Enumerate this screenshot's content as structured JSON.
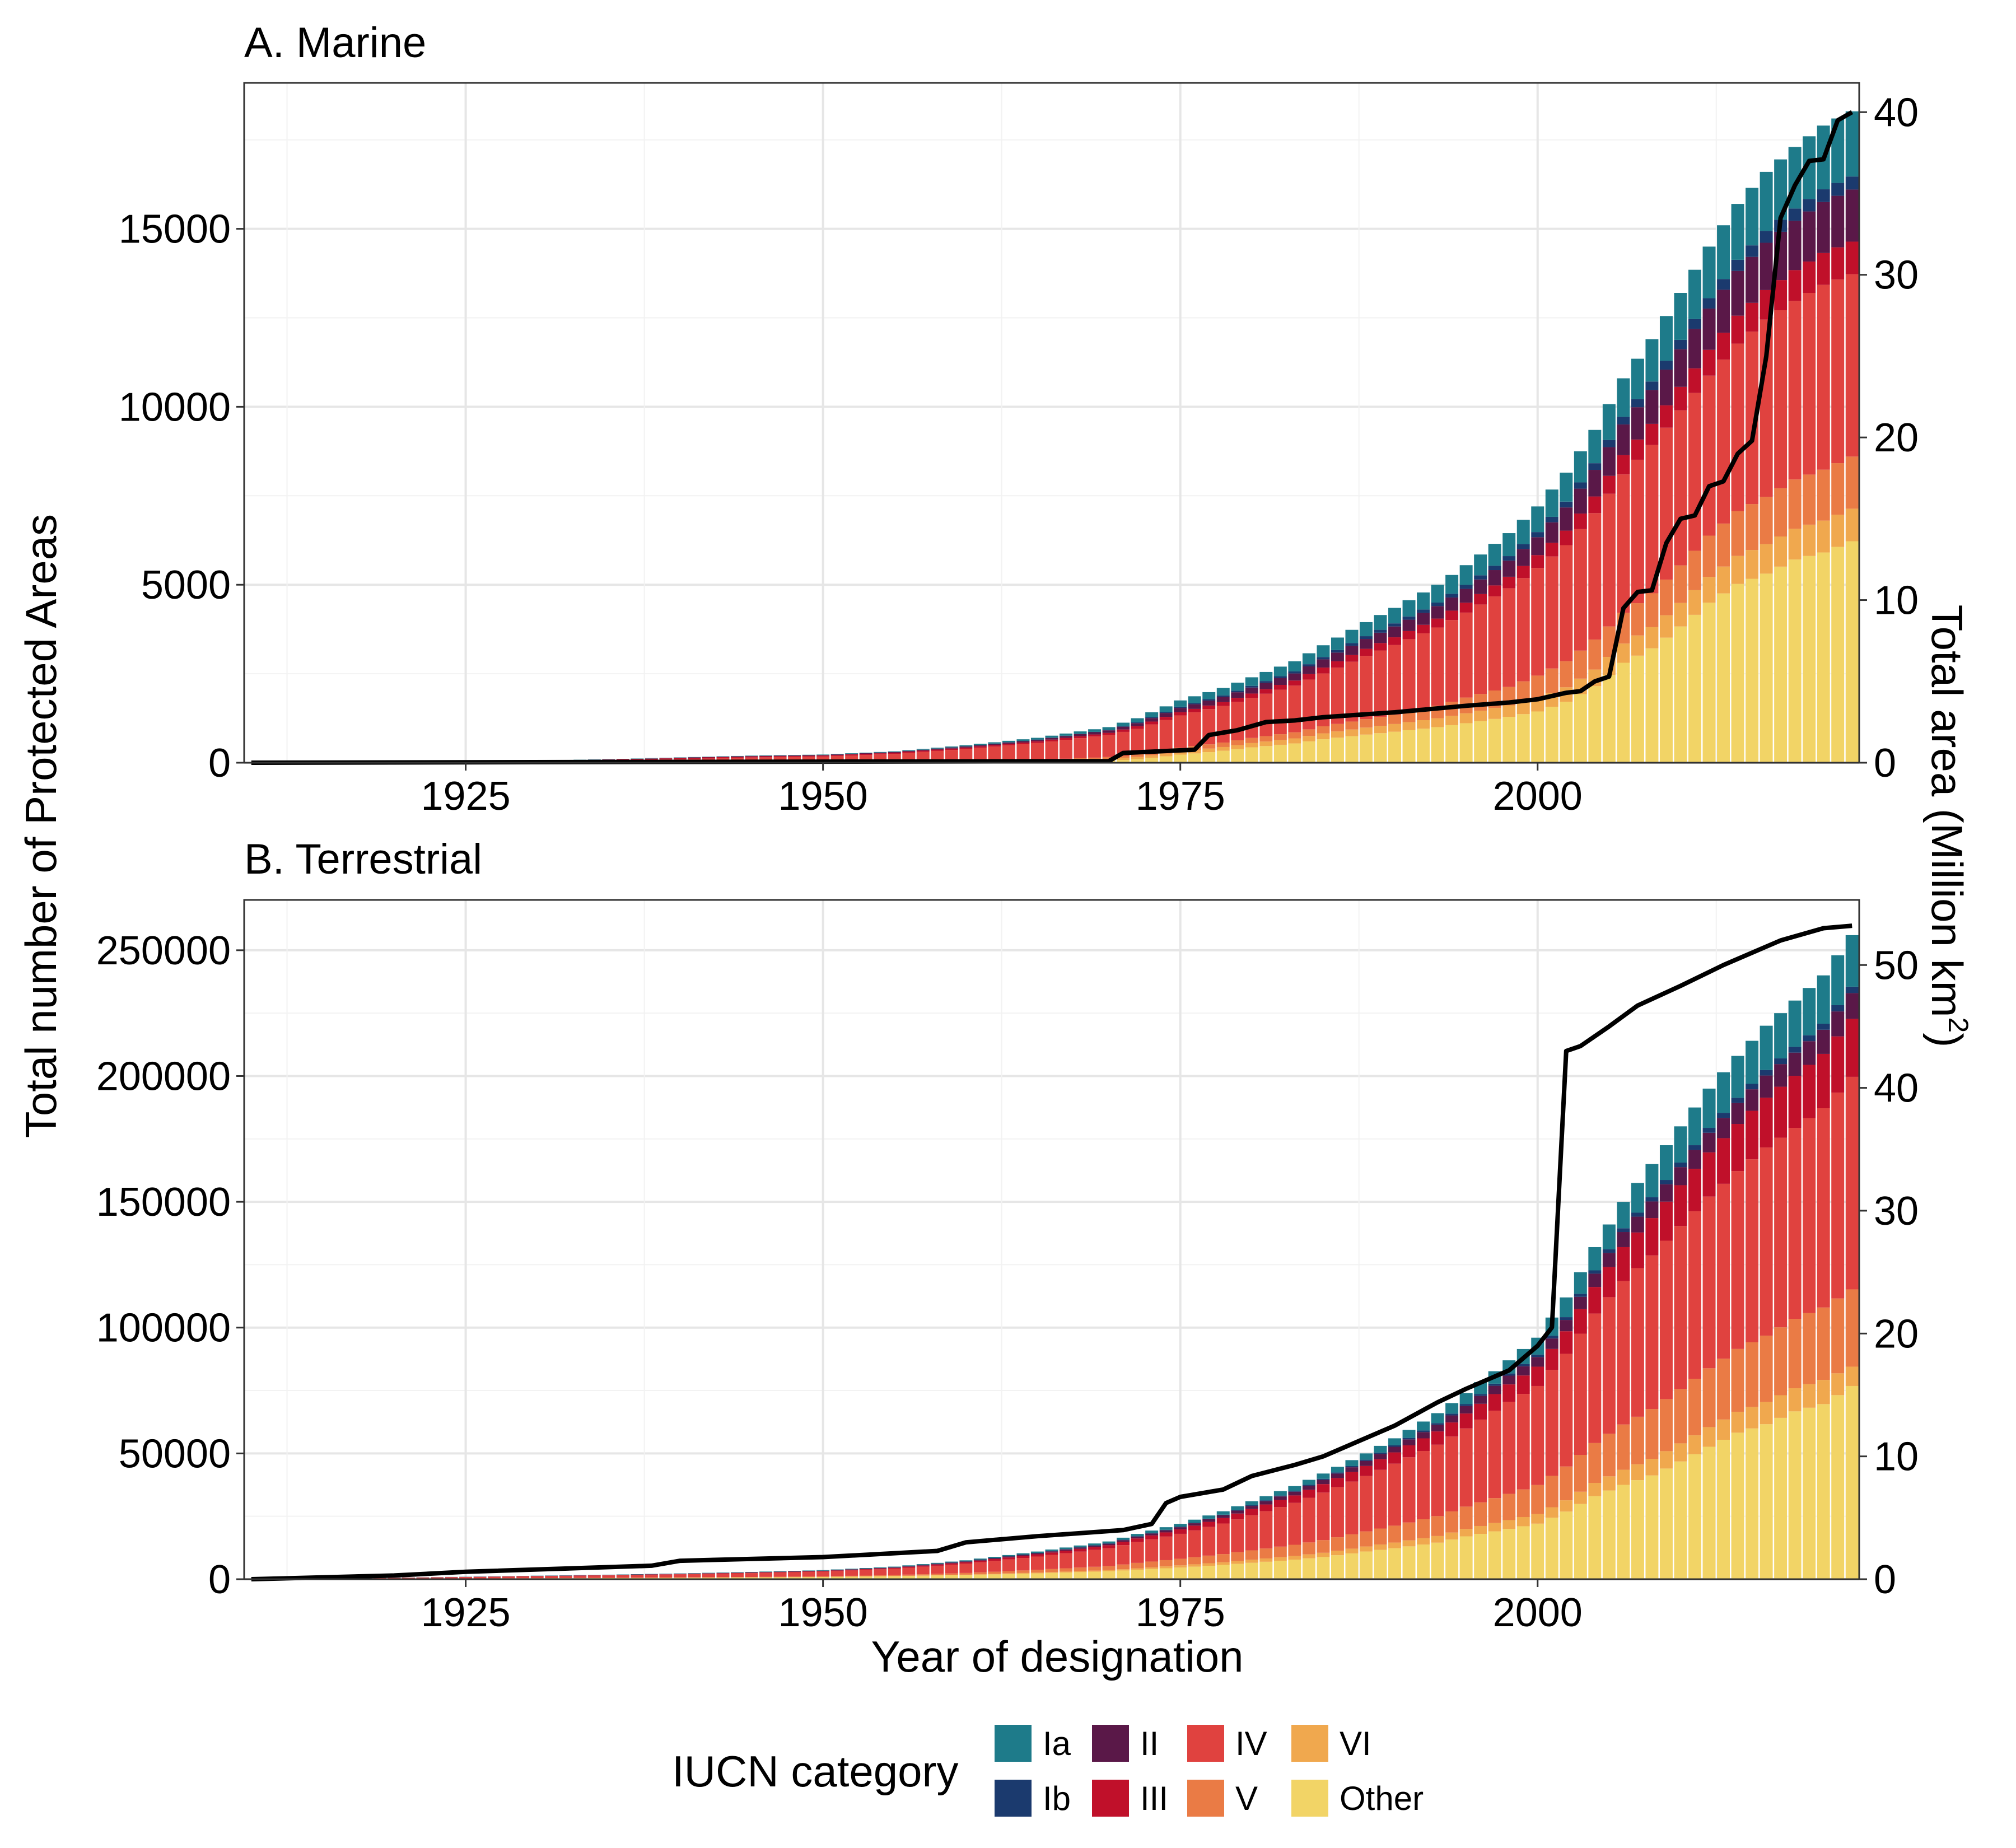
{
  "figure": {
    "y_axis_title": "Total number of Protected Areas",
    "y2_axis_title": "Total area (Million km",
    "y2_axis_title_superscript": "2",
    "y2_axis_title_close": ")",
    "x_axis_title": "Year of designation"
  },
  "legend": {
    "title": "IUCN category",
    "items": [
      {
        "key": "Ia",
        "label": "Ia",
        "color": "#1e7b8a"
      },
      {
        "key": "Ib",
        "label": "Ib",
        "color": "#1b3a6e"
      },
      {
        "key": "II",
        "label": "II",
        "color": "#5a1848"
      },
      {
        "key": "III",
        "label": "III",
        "color": "#c0102a"
      },
      {
        "key": "IV",
        "label": "IV",
        "color": "#e0423f"
      },
      {
        "key": "V",
        "label": "V",
        "color": "#ea7b45"
      },
      {
        "key": "VI",
        "label": "VI",
        "color": "#f0a84e"
      },
      {
        "key": "Other",
        "label": "Other",
        "color": "#f2d466"
      }
    ]
  },
  "line_color": "#000000",
  "chart_data": [
    {
      "type": "bar",
      "title": "A. Marine",
      "xlabel": "Year of designation",
      "ylabel": "Total number of Protected Areas",
      "y2label": "Total area (Million km2)",
      "xlim": [
        1910,
        2022
      ],
      "ylim": [
        0,
        19100
      ],
      "y2lim": [
        0,
        41.8
      ],
      "x_ticks": [
        1925,
        1950,
        1975,
        2000
      ],
      "y_ticks": [
        0,
        5000,
        10000,
        15000
      ],
      "y2_ticks": [
        0,
        10,
        20,
        30,
        40
      ],
      "grid": true,
      "stacked": true,
      "bar_series": {
        "x": [
          1910,
          1915,
          1920,
          1925,
          1930,
          1935,
          1940,
          1945,
          1950,
          1955,
          1960,
          1965,
          1970,
          1972,
          1975,
          1978,
          1980,
          1983,
          1985,
          1988,
          1990,
          1993,
          1995,
          1998,
          2000,
          2002,
          2004,
          2006,
          2008,
          2010,
          2012,
          2014,
          2016,
          2018,
          2020,
          2022
        ],
        "totals": [
          0,
          0,
          10,
          30,
          60,
          100,
          150,
          200,
          230,
          320,
          490,
          700,
          1000,
          1250,
          1750,
          2100,
          2400,
          2850,
          3300,
          3950,
          4350,
          5000,
          5550,
          6450,
          7200,
          8150,
          9350,
          10800,
          11900,
          13200,
          14500,
          15700,
          16600,
          17300,
          17900,
          18300
        ],
        "fractions": {
          "Ia": [
            0.12,
            0.12,
            0.12,
            0.1,
            0.08,
            0.06,
            0.05,
            0.05,
            0.05,
            0.05,
            0.06,
            0.07,
            0.08,
            0.09,
            0.1,
            0.1,
            0.1,
            0.1,
            0.1,
            0.1,
            0.1,
            0.1,
            0.1,
            0.1,
            0.1,
            0.1,
            0.1,
            0.1,
            0.1,
            0.1,
            0.1,
            0.1,
            0.1,
            0.1,
            0.1,
            0.1
          ],
          "Ib": [
            0.01,
            0.01,
            0.01,
            0.01,
            0.01,
            0.01,
            0.01,
            0.01,
            0.01,
            0.01,
            0.01,
            0.01,
            0.01,
            0.02,
            0.02,
            0.02,
            0.02,
            0.02,
            0.02,
            0.02,
            0.02,
            0.02,
            0.02,
            0.02,
            0.02,
            0.02,
            0.02,
            0.02,
            0.02,
            0.02,
            0.02,
            0.02,
            0.02,
            0.02,
            0.02,
            0.02
          ],
          "II": [
            0.1,
            0.1,
            0.1,
            0.1,
            0.08,
            0.07,
            0.06,
            0.06,
            0.06,
            0.06,
            0.06,
            0.06,
            0.07,
            0.07,
            0.07,
            0.07,
            0.07,
            0.07,
            0.07,
            0.07,
            0.07,
            0.07,
            0.07,
            0.07,
            0.07,
            0.08,
            0.08,
            0.08,
            0.08,
            0.08,
            0.08,
            0.08,
            0.08,
            0.08,
            0.08,
            0.08
          ],
          "III": [
            0.3,
            0.3,
            0.3,
            0.3,
            0.3,
            0.25,
            0.2,
            0.15,
            0.12,
            0.1,
            0.08,
            0.07,
            0.06,
            0.06,
            0.05,
            0.05,
            0.05,
            0.05,
            0.05,
            0.05,
            0.05,
            0.05,
            0.05,
            0.05,
            0.05,
            0.05,
            0.05,
            0.05,
            0.05,
            0.05,
            0.05,
            0.05,
            0.05,
            0.05,
            0.05,
            0.05
          ],
          "IV": [
            0.47,
            0.47,
            0.47,
            0.49,
            0.53,
            0.61,
            0.68,
            0.73,
            0.74,
            0.72,
            0.7,
            0.67,
            0.62,
            0.57,
            0.52,
            0.49,
            0.47,
            0.46,
            0.45,
            0.45,
            0.45,
            0.44,
            0.43,
            0.43,
            0.42,
            0.4,
            0.38,
            0.36,
            0.35,
            0.33,
            0.31,
            0.3,
            0.3,
            0.29,
            0.29,
            0.28
          ],
          "V": [
            0.0,
            0.0,
            0.0,
            0.0,
            0.0,
            0.0,
            0.0,
            0.0,
            0.0,
            0.02,
            0.03,
            0.04,
            0.05,
            0.06,
            0.06,
            0.06,
            0.06,
            0.06,
            0.06,
            0.06,
            0.06,
            0.07,
            0.08,
            0.08,
            0.09,
            0.09,
            0.09,
            0.08,
            0.08,
            0.08,
            0.08,
            0.08,
            0.08,
            0.08,
            0.08,
            0.08
          ],
          "VI": [
            0.0,
            0.0,
            0.0,
            0.0,
            0.0,
            0.0,
            0.0,
            0.0,
            0.01,
            0.02,
            0.03,
            0.04,
            0.05,
            0.05,
            0.05,
            0.05,
            0.05,
            0.05,
            0.05,
            0.05,
            0.05,
            0.05,
            0.05,
            0.05,
            0.05,
            0.05,
            0.05,
            0.05,
            0.05,
            0.05,
            0.05,
            0.05,
            0.05,
            0.05,
            0.05,
            0.05
          ],
          "Other": [
            0.0,
            0.0,
            0.0,
            0.0,
            0.0,
            0.0,
            0.0,
            0.0,
            0.01,
            0.02,
            0.03,
            0.04,
            0.06,
            0.08,
            0.13,
            0.16,
            0.18,
            0.19,
            0.2,
            0.2,
            0.2,
            0.2,
            0.2,
            0.2,
            0.2,
            0.21,
            0.23,
            0.26,
            0.27,
            0.29,
            0.31,
            0.32,
            0.32,
            0.33,
            0.33,
            0.34
          ]
        }
      },
      "line_series": {
        "axis": "right",
        "x": [
          1910,
          1970,
          1971,
          1976,
          1977,
          1979,
          1981,
          1983,
          1985,
          1990,
          1995,
          1998,
          2000,
          2002,
          2003,
          2004,
          2005,
          2006,
          2007,
          2008,
          2009,
          2010,
          2011,
          2012,
          2013,
          2014,
          2015,
          2016,
          2017,
          2018,
          2019,
          2020,
          2021,
          2022
        ],
        "y": [
          0,
          0.1,
          0.6,
          0.8,
          1.7,
          2.0,
          2.5,
          2.6,
          2.8,
          3.1,
          3.5,
          3.7,
          3.9,
          4.3,
          4.4,
          5.0,
          5.3,
          9.5,
          10.5,
          10.6,
          13.5,
          15.0,
          15.2,
          17.0,
          17.3,
          19.0,
          19.8,
          25.0,
          33.5,
          35.5,
          37.0,
          37.1,
          39.5,
          40.0
        ]
      }
    },
    {
      "type": "bar",
      "title": "B. Terrestrial",
      "xlabel": "Year of designation",
      "ylabel": "Total number of Protected Areas",
      "y2label": "Total area (Million km2)",
      "xlim": [
        1910,
        2022
      ],
      "ylim": [
        0,
        270000
      ],
      "y2lim": [
        0,
        55.3
      ],
      "x_ticks": [
        1925,
        1950,
        1975,
        2000
      ],
      "y_ticks": [
        0,
        50000,
        100000,
        150000,
        200000,
        250000
      ],
      "y2_ticks": [
        0,
        10,
        20,
        30,
        40,
        50
      ],
      "grid": true,
      "stacked": true,
      "bar_series": {
        "x": [
          1910,
          1915,
          1920,
          1925,
          1930,
          1935,
          1940,
          1945,
          1950,
          1955,
          1960,
          1965,
          1970,
          1972,
          1975,
          1978,
          1980,
          1983,
          1985,
          1988,
          1990,
          1993,
          1995,
          1998,
          2000,
          2002,
          2004,
          2006,
          2008,
          2010,
          2012,
          2014,
          2016,
          2018,
          2020,
          2022
        ],
        "totals": [
          100,
          300,
          600,
          1000,
          1400,
          1800,
          2300,
          2900,
          3600,
          5000,
          7500,
          11000,
          15000,
          18000,
          22000,
          27000,
          31000,
          37000,
          42000,
          50000,
          56000,
          66000,
          74000,
          87000,
          96000,
          112000,
          132000,
          150000,
          165000,
          180000,
          195000,
          208000,
          220000,
          230000,
          240000,
          256000
        ],
        "fractions": {
          "Ia": [
            0.05,
            0.05,
            0.05,
            0.05,
            0.05,
            0.05,
            0.05,
            0.05,
            0.05,
            0.05,
            0.05,
            0.05,
            0.05,
            0.05,
            0.05,
            0.05,
            0.05,
            0.05,
            0.05,
            0.05,
            0.05,
            0.06,
            0.06,
            0.06,
            0.07,
            0.07,
            0.07,
            0.07,
            0.08,
            0.08,
            0.08,
            0.08,
            0.08,
            0.08,
            0.08,
            0.08
          ],
          "Ib": [
            0.01,
            0.01,
            0.01,
            0.01,
            0.01,
            0.01,
            0.01,
            0.01,
            0.01,
            0.01,
            0.01,
            0.01,
            0.01,
            0.01,
            0.01,
            0.01,
            0.01,
            0.01,
            0.01,
            0.01,
            0.01,
            0.01,
            0.01,
            0.01,
            0.01,
            0.01,
            0.01,
            0.01,
            0.01,
            0.01,
            0.01,
            0.01,
            0.01,
            0.01,
            0.01,
            0.01
          ],
          "II": [
            0.05,
            0.05,
            0.05,
            0.05,
            0.05,
            0.05,
            0.05,
            0.05,
            0.04,
            0.04,
            0.04,
            0.04,
            0.04,
            0.04,
            0.04,
            0.04,
            0.04,
            0.04,
            0.04,
            0.04,
            0.04,
            0.04,
            0.04,
            0.04,
            0.04,
            0.04,
            0.04,
            0.04,
            0.04,
            0.04,
            0.04,
            0.04,
            0.04,
            0.04,
            0.04,
            0.04
          ],
          "III": [
            0.05,
            0.05,
            0.05,
            0.05,
            0.05,
            0.05,
            0.05,
            0.05,
            0.06,
            0.07,
            0.08,
            0.08,
            0.08,
            0.08,
            0.08,
            0.08,
            0.08,
            0.08,
            0.08,
            0.08,
            0.08,
            0.08,
            0.08,
            0.08,
            0.08,
            0.08,
            0.08,
            0.09,
            0.09,
            0.09,
            0.09,
            0.09,
            0.09,
            0.09,
            0.09,
            0.09
          ],
          "IV": [
            0.54,
            0.54,
            0.54,
            0.54,
            0.54,
            0.54,
            0.54,
            0.54,
            0.52,
            0.5,
            0.49,
            0.48,
            0.47,
            0.46,
            0.45,
            0.45,
            0.45,
            0.45,
            0.45,
            0.44,
            0.44,
            0.43,
            0.42,
            0.42,
            0.41,
            0.4,
            0.39,
            0.38,
            0.37,
            0.36,
            0.35,
            0.34,
            0.34,
            0.33,
            0.33,
            0.33
          ],
          "V": [
            0.05,
            0.05,
            0.05,
            0.05,
            0.05,
            0.05,
            0.05,
            0.05,
            0.07,
            0.08,
            0.09,
            0.1,
            0.11,
            0.12,
            0.12,
            0.12,
            0.12,
            0.12,
            0.12,
            0.12,
            0.12,
            0.12,
            0.12,
            0.12,
            0.12,
            0.12,
            0.12,
            0.12,
            0.12,
            0.12,
            0.12,
            0.12,
            0.12,
            0.12,
            0.12,
            0.12
          ],
          "VI": [
            0.0,
            0.0,
            0.0,
            0.0,
            0.0,
            0.0,
            0.0,
            0.0,
            0.0,
            0.01,
            0.02,
            0.03,
            0.03,
            0.03,
            0.04,
            0.04,
            0.04,
            0.04,
            0.04,
            0.04,
            0.04,
            0.04,
            0.04,
            0.04,
            0.04,
            0.04,
            0.04,
            0.04,
            0.04,
            0.04,
            0.04,
            0.04,
            0.04,
            0.04,
            0.04,
            0.03
          ],
          "Other": [
            0.25,
            0.25,
            0.25,
            0.25,
            0.25,
            0.25,
            0.25,
            0.25,
            0.25,
            0.24,
            0.22,
            0.21,
            0.21,
            0.21,
            0.21,
            0.21,
            0.21,
            0.21,
            0.21,
            0.22,
            0.22,
            0.22,
            0.23,
            0.23,
            0.23,
            0.24,
            0.25,
            0.25,
            0.25,
            0.26,
            0.27,
            0.28,
            0.28,
            0.29,
            0.29,
            0.3
          ]
        }
      },
      "line_series": {
        "axis": "right",
        "x": [
          1910,
          1920,
          1925,
          1938,
          1940,
          1950,
          1958,
          1960,
          1965,
          1971,
          1973,
          1974,
          1975,
          1978,
          1980,
          1983,
          1985,
          1990,
          1993,
          1995,
          1998,
          2000,
          2001,
          2002,
          2003,
          2005,
          2007,
          2010,
          2013,
          2015,
          2017,
          2020,
          2022
        ],
        "y": [
          0,
          0.3,
          0.6,
          1.1,
          1.5,
          1.8,
          2.3,
          3.0,
          3.5,
          4.0,
          4.5,
          6.2,
          6.7,
          7.3,
          8.4,
          9.3,
          10.0,
          12.5,
          14.4,
          15.5,
          17.0,
          19.0,
          20.5,
          43.0,
          43.4,
          45.0,
          46.7,
          48.3,
          50.0,
          51.0,
          52.0,
          53.0,
          53.2
        ]
      }
    }
  ]
}
